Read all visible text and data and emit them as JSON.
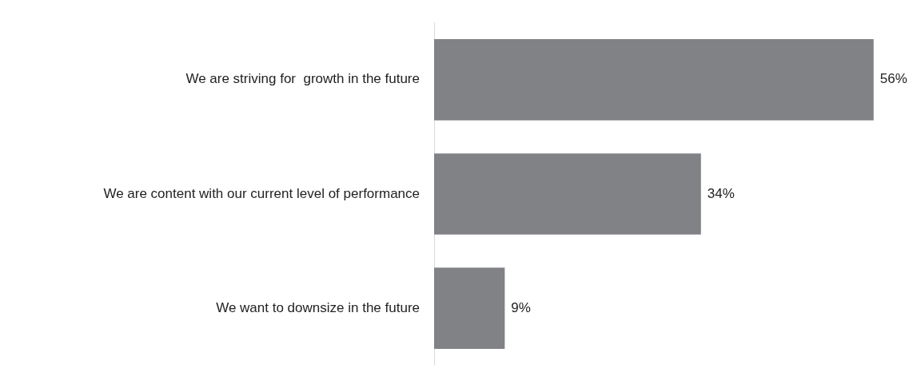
{
  "chart_data": {
    "type": "bar",
    "orientation": "horizontal",
    "categories": [
      "We are striving for  growth in the future",
      "We are content with our current level of performance",
      "We want to downsize in the future"
    ],
    "values": [
      56,
      34,
      9
    ],
    "value_labels": [
      "56%",
      "34%",
      "9%"
    ],
    "color": "#818285"
  }
}
